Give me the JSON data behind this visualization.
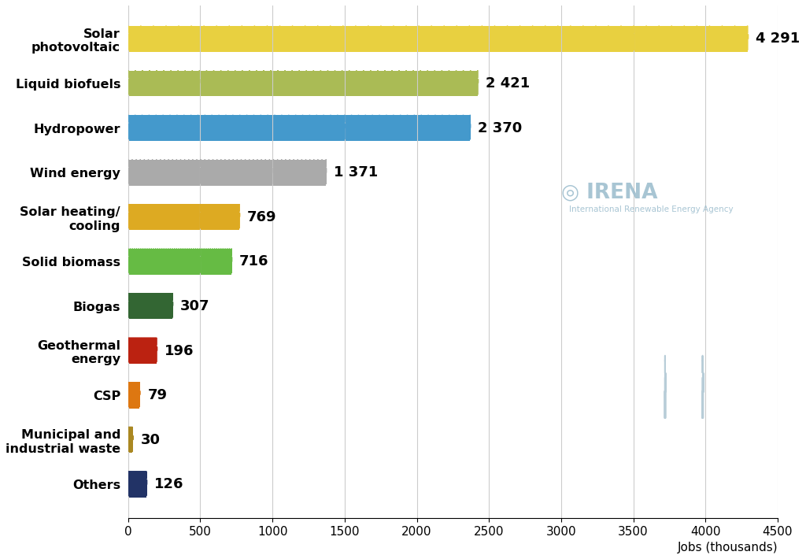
{
  "categories": [
    "Solar\nphotovoltaic",
    "Liquid biofuels",
    "Hydropower",
    "Wind energy",
    "Solar heating/\ncooling",
    "Solid biomass",
    "Biogas",
    "Geothermal\nenergy",
    "CSP",
    "Municipal and\nindustrial waste",
    "Others"
  ],
  "values": [
    4291,
    2421,
    2370,
    1371,
    769,
    716,
    307,
    196,
    79,
    30,
    126
  ],
  "colors": [
    "#E8D040",
    "#AABB55",
    "#4499CC",
    "#AAAAAA",
    "#DDAA22",
    "#66BB44",
    "#336633",
    "#BB2211",
    "#DD7711",
    "#AA8822",
    "#223366"
  ],
  "value_labels": [
    "4 291",
    "2 421",
    "2 370",
    "1 371",
    "769",
    "716",
    "307",
    "196",
    "79",
    "30",
    "126"
  ],
  "bar_height": 0.58,
  "xlim": [
    0,
    4500
  ],
  "xticks": [
    0,
    500,
    1000,
    1500,
    2000,
    2500,
    3000,
    3500,
    4000,
    4500
  ],
  "xlabel": "Jobs (thousands)",
  "background_color": "#FFFFFF",
  "grid_color": "#CCCCCC",
  "irena_color": "#99BBCC",
  "label_fontsize": 11.5,
  "value_fontsize": 13,
  "xtick_fontsize": 11,
  "max_persons": 50
}
